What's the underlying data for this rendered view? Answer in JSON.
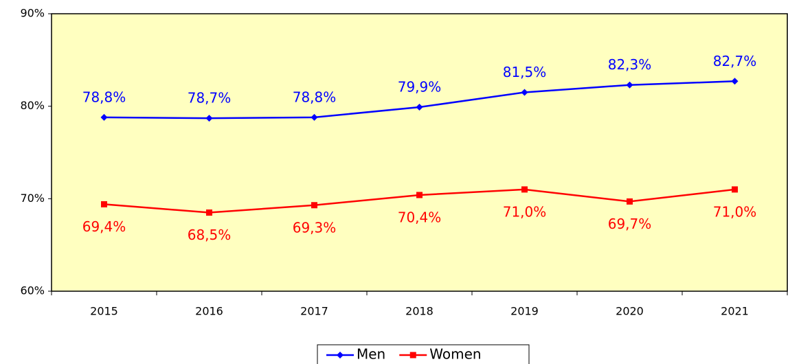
{
  "chart_data": {
    "type": "line",
    "categories": [
      "2015",
      "2016",
      "2017",
      "2018",
      "2019",
      "2020",
      "2021"
    ],
    "series": [
      {
        "name": "Men",
        "color": "#0000ff",
        "marker": "diamond",
        "values": [
          78.8,
          78.7,
          78.8,
          79.9,
          81.5,
          82.3,
          82.7
        ],
        "value_labels": [
          "78,8%",
          "78,7%",
          "78,8%",
          "79,9%",
          "81,5%",
          "82,3%",
          "82,7%"
        ]
      },
      {
        "name": "Women",
        "color": "#ff0000",
        "marker": "square",
        "values": [
          69.4,
          68.5,
          69.3,
          70.4,
          71.0,
          69.7,
          71.0
        ],
        "value_labels": [
          "69,4%",
          "68,5%",
          "69,3%",
          "70,4%",
          "71,0%",
          "69,7%",
          "71,0%"
        ]
      }
    ],
    "ylim": [
      60,
      90
    ],
    "yticks": [
      {
        "value": 60,
        "label": "60%"
      },
      {
        "value": 70,
        "label": "70%"
      },
      {
        "value": 80,
        "label": "80%"
      },
      {
        "value": 90,
        "label": "90%"
      }
    ],
    "plot_background": "#ffffc0",
    "legend": "bottom"
  }
}
